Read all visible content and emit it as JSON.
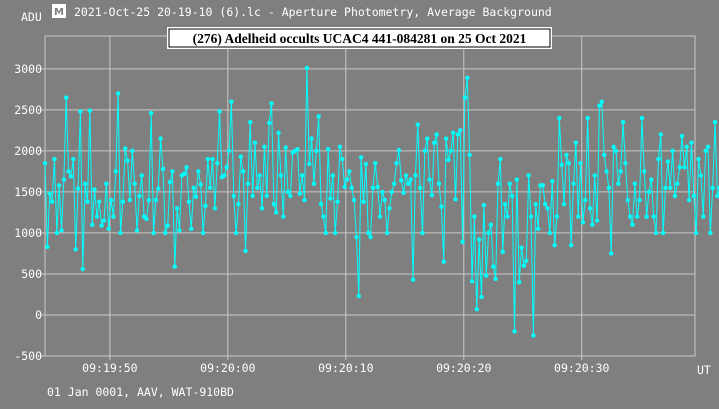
{
  "header": {
    "icon": "tangra-app-icon",
    "caption": "2021-Oct-25 20-19-10 (6).lc - Aperture Photometry, Average Background"
  },
  "footer": {
    "caption": "01 Jan 0001, AAV, WAT-910BD"
  },
  "colors": {
    "background": "#7f7f7f",
    "grid": "#c8c8c8",
    "series": "#00ffff",
    "text": "#ffffff",
    "title_box": "#ffffff"
  },
  "chart_data": {
    "type": "line",
    "title": "(276) Adelheid occults UCAC4 441-084281 on 25 Oct 2021",
    "ylabel": "ADU",
    "xlabel": "UT",
    "ylim": [
      -500,
      3400
    ],
    "y_ticks": [
      -500,
      0,
      500,
      1000,
      1500,
      2000,
      2500,
      3000
    ],
    "x_tick_labels": [
      "09:19:50",
      "09:20:00",
      "09:20:10",
      "09:20:20",
      "09:20:30"
    ],
    "x_tick_seconds": [
      50,
      60,
      70,
      80,
      90
    ],
    "x_range_seconds": [
      44.5,
      99.6
    ],
    "grid": true,
    "marker": "dot",
    "series": [
      {
        "start_seconds": 44.5,
        "step_seconds": 0.2,
        "values": [
          1850,
          830,
          1480,
          1380,
          1900,
          1000,
          1580,
          1030,
          1650,
          2650,
          1750,
          1690,
          1900,
          800,
          1540,
          2480,
          560,
          1600,
          1380,
          2490,
          1100,
          1530,
          1200,
          1380,
          1090,
          1150,
          1600,
          1050,
          1400,
          1200,
          1750,
          2700,
          1000,
          1380,
          2030,
          1880,
          1400,
          2000,
          1600,
          1030,
          1450,
          1700,
          1200,
          1170,
          1400,
          2460,
          1000,
          1400,
          1540,
          2150,
          1780,
          1000,
          1090,
          1620,
          1750,
          590,
          1300,
          1030,
          1700,
          1720,
          1800,
          1380,
          1050,
          1550,
          1440,
          1750,
          1590,
          1000,
          1330,
          1900,
          1550,
          1900,
          1300,
          1850,
          2480,
          1680,
          1700,
          1800,
          2000,
          2600,
          1450,
          1000,
          1350,
          1930,
          1750,
          780,
          1600,
          2350,
          1450,
          2100,
          1550,
          1700,
          1300,
          2050,
          1450,
          2340,
          2580,
          1350,
          1250,
          2220,
          1700,
          1200,
          2040,
          1500,
          1450,
          1980,
          2000,
          2020,
          1480,
          1700,
          1400,
          3010,
          1840,
          2150,
          1600,
          2000,
          2420,
          1350,
          1200,
          1000,
          2020,
          1420,
          1700,
          1000,
          1380,
          2050,
          1900,
          1560,
          1650,
          1750,
          1550,
          1400,
          950,
          230,
          1920,
          1380,
          1840,
          1000,
          950,
          1550,
          1850,
          1560,
          1200,
          1500,
          1400,
          1000,
          1300,
          1500,
          1600,
          1850,
          2010,
          1640,
          1490,
          1700,
          1600,
          1650,
          430,
          1700,
          2320,
          1550,
          1000,
          2000,
          2150,
          1650,
          1460,
          2100,
          2200,
          1600,
          1320,
          650,
          2150,
          1890,
          2000,
          2220,
          1410,
          2200,
          2250,
          890,
          2650,
          2890,
          1950,
          410,
          1200,
          70,
          920,
          220,
          1340,
          480,
          1000,
          1100,
          590,
          440,
          1600,
          1900,
          770,
          1350,
          1200,
          1600,
          1450,
          -200,
          1650,
          400,
          820,
          600,
          660,
          1700,
          1200,
          -250,
          1350,
          1050,
          1580,
          1580,
          1350,
          1300,
          1000,
          1630,
          850,
          1200,
          2400,
          1830,
          1350,
          1950,
          1850,
          850,
          1600,
          2100,
          1200,
          1850,
          1130,
          1400,
          2400,
          1300,
          1100,
          1700,
          1150,
          2550,
          2600,
          1950,
          1750,
          1550,
          750,
          2050,
          2000,
          1600,
          1750,
          2350,
          1850,
          1400,
          1200,
          1100,
          1600,
          1200,
          1400,
          2400,
          1750,
          1200,
          1500,
          1650,
          1200,
          1000,
          1900,
          2200,
          1000,
          1550,
          1870,
          1550,
          2000,
          1450,
          1600,
          1800,
          2180,
          1800,
          2050,
          1400,
          2100,
          1450,
          1000,
          1900,
          1700,
          1200,
          2000,
          2050,
          1000,
          1550,
          2350,
          1450,
          1550,
          1900,
          1400,
          1300,
          1500,
          1800,
          1030,
          1200,
          1700,
          1600,
          1700,
          1450,
          2260,
          1000,
          1480,
          1400,
          960,
          2100,
          1900,
          1300,
          2620,
          1400,
          1850,
          1500,
          1900,
          1550,
          1200,
          1700,
          1600,
          2250,
          1000,
          1200,
          2000,
          1650,
          1850,
          2400,
          2000,
          1400,
          1550,
          1350,
          1700,
          1080,
          2000,
          1400,
          1000,
          2000,
          2100,
          1850,
          1750,
          1200,
          2050,
          1300,
          1750,
          1500,
          1600,
          1000,
          2000,
          2040,
          1200,
          1600,
          1080,
          1500,
          1900,
          1800,
          1750,
          1300,
          1050,
          1600,
          1900,
          1350,
          1500,
          1850,
          1600,
          1850,
          2300,
          1700,
          1600,
          1800,
          1500,
          2000,
          1480,
          1700,
          1850,
          1650,
          1800,
          1350,
          1900,
          1650,
          1500,
          1850,
          2000,
          1700,
          600,
          1000,
          1100,
          1500,
          1600,
          1400,
          1000,
          1150,
          1300,
          1750,
          1500,
          1800,
          1150,
          1700,
          1950,
          1500,
          1100,
          1450,
          1050,
          1750,
          2150,
          1600,
          1400,
          1300,
          1650,
          1200,
          1250,
          1500,
          1850,
          1550,
          1300,
          1000,
          1600,
          1050,
          1300,
          1100,
          1350,
          1000,
          1450,
          1500,
          1750,
          1300,
          1250,
          1100,
          1300,
          1000,
          1200,
          1600,
          1900,
          1700,
          1200,
          1000,
          1600,
          1400,
          1700,
          1550,
          1800,
          1250,
          1100,
          1350,
          1400,
          1600,
          2050,
          1650,
          1050,
          1300,
          1200,
          1600,
          1150,
          1450,
          1000,
          2100,
          1650,
          1500,
          1100,
          1350,
          1000,
          1700,
          1400,
          1800,
          1200,
          1950,
          2100,
          1900,
          1600,
          1700,
          1500,
          1300,
          1850,
          1500,
          1100,
          1750,
          1400,
          1350,
          1550,
          1250,
          1000,
          1700,
          1200,
          1600,
          1500,
          1750,
          1800,
          1350,
          1300,
          1000,
          1600,
          1850,
          1950,
          1400,
          1200,
          1700,
          1850,
          1500,
          1050,
          1750,
          1900,
          1800,
          2050,
          1600,
          1700,
          1400,
          1300,
          1800,
          1250,
          1100,
          1500,
          1950,
          2050,
          1600,
          1400,
          1700,
          1250,
          1500,
          1100,
          1350,
          1950,
          1750,
          1600,
          1400,
          1200,
          1000,
          1500,
          1850,
          1700,
          1300,
          1150,
          1600,
          1900,
          1700,
          1800,
          1450,
          1600,
          1550,
          1400,
          1500,
          1600,
          1350,
          1800,
          2100,
          1700
        ]
      }
    ]
  }
}
